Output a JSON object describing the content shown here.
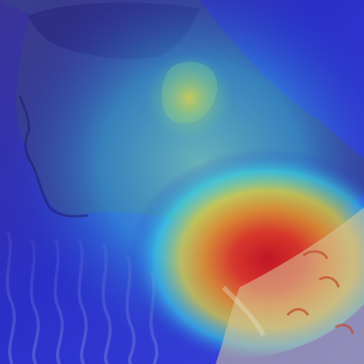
{
  "image": {
    "subject": "photo-with-heatmap-overlay",
    "overlay": "jet-colormap-heatmap",
    "colors": {
      "background_blue": "#2a2fc8",
      "deep_blue": "#1d1fa8",
      "cyan": "#37d6e6",
      "yellow": "#e6d23a",
      "orange": "#f08a1c",
      "red": "#d81a14",
      "skin_shadow": "#3a3f8c",
      "fabric": "#d9c99a"
    }
  }
}
